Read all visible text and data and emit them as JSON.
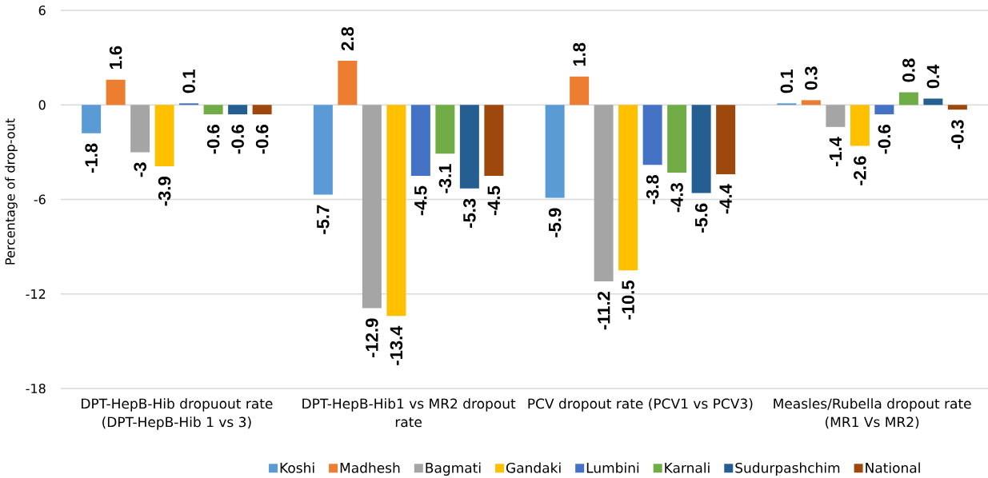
{
  "chart_data": {
    "type": "bar",
    "ylabel": "Percentage of drop-out",
    "categories": [
      "DPT-HepB-Hib dropuout rate (DPT-HepB-Hib 1 vs 3)",
      "DPT-HepB-Hib1 vs MR2 dropout rate",
      "PCV dropout rate (PCV1 vs PCV3)",
      "Measles/Rubella dropout rate (MR1 Vs MR2)"
    ],
    "series": [
      {
        "name": "Koshi",
        "color": "#5b9bd5",
        "values": [
          -1.8,
          -5.7,
          -5.9,
          0.1
        ]
      },
      {
        "name": "Madhesh",
        "color": "#ed7d31",
        "values": [
          1.6,
          2.8,
          1.8,
          0.3
        ]
      },
      {
        "name": "Bagmati",
        "color": "#a5a5a5",
        "values": [
          -3,
          -12.9,
          -11.2,
          -1.4
        ]
      },
      {
        "name": "Gandaki",
        "color": "#ffc000",
        "values": [
          -3.9,
          -13.4,
          -10.5,
          -2.6
        ]
      },
      {
        "name": "Lumbini",
        "color": "#4472c4",
        "values": [
          0.1,
          -4.5,
          -3.8,
          -0.6
        ]
      },
      {
        "name": "Karnali",
        "color": "#70ad47",
        "values": [
          -0.6,
          -3.1,
          -4.3,
          0.8
        ]
      },
      {
        "name": "Sudurpashchim",
        "color": "#255e91",
        "values": [
          -0.6,
          -5.3,
          -5.6,
          0.4
        ]
      },
      {
        "name": "National",
        "color": "#9e480e",
        "values": [
          -0.6,
          -4.5,
          -4.4,
          -0.3
        ]
      }
    ],
    "ylim": [
      -18,
      6
    ],
    "yticks": [
      -18,
      -12,
      -6,
      0,
      6
    ],
    "grid": "y",
    "data_labels": true,
    "legend": "bottom"
  }
}
